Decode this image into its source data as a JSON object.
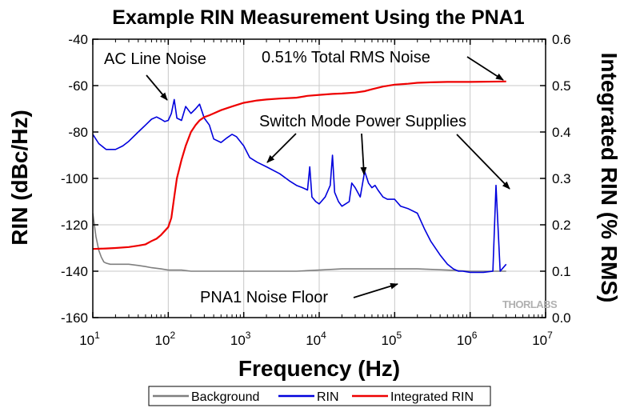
{
  "colors": {
    "background": "#7f7f7f",
    "rin": "#0000dd",
    "integrated": "#ee0000",
    "grid": "#c8c8c8",
    "axis": "#000000",
    "watermark": "#b0b0b0"
  },
  "chart_data": {
    "type": "line",
    "title": "Example RIN Measurement Using the PNA1",
    "xlabel": "Frequency (Hz)",
    "ylabel_left": "RIN (dBc/Hz)",
    "ylabel_right": "Integrated RIN (% RMS)",
    "x_scale": "log",
    "xlim": [
      10,
      10000000
    ],
    "ylim_left": [
      -160,
      -40
    ],
    "ylim_right": [
      0.0,
      0.6
    ],
    "grid": true,
    "legend_position": "bottom",
    "x_tick_labels": [
      {
        "base": "10",
        "exp": "1"
      },
      {
        "base": "10",
        "exp": "2"
      },
      {
        "base": "10",
        "exp": "3"
      },
      {
        "base": "10",
        "exp": "4"
      },
      {
        "base": "10",
        "exp": "5"
      },
      {
        "base": "10",
        "exp": "6"
      },
      {
        "base": "10",
        "exp": "7"
      }
    ],
    "y_left_ticks": [
      "-40",
      "-60",
      "-80",
      "-100",
      "-120",
      "-140",
      "-160"
    ],
    "y_right_ticks": [
      "0.6",
      "0.5",
      "0.4",
      "0.3",
      "0.2",
      "0.1",
      "0.0"
    ],
    "series": [
      {
        "name": "Background",
        "axis": "left",
        "x": [
          10,
          11,
          12,
          13,
          14,
          15,
          17,
          20,
          25,
          30,
          40,
          50,
          60,
          80,
          100,
          150,
          200,
          300,
          500,
          1000,
          2000,
          5000,
          10000,
          20000,
          50000,
          100000,
          200000,
          500000,
          1000000,
          2000000,
          3000000
        ],
        "y": [
          -115,
          -125,
          -131,
          -134,
          -136,
          -136.5,
          -137,
          -137,
          -137,
          -137,
          -137.5,
          -138,
          -138.5,
          -139,
          -139.5,
          -139.5,
          -140,
          -140,
          -140,
          -140,
          -140,
          -140,
          -139.5,
          -139,
          -139,
          -139,
          -139,
          -139.5,
          -140,
          -140,
          -140
        ]
      },
      {
        "name": "RIN",
        "axis": "left",
        "x": [
          10,
          12,
          15,
          20,
          25,
          30,
          40,
          50,
          60,
          70,
          80,
          90,
          100,
          110,
          120,
          130,
          150,
          170,
          200,
          230,
          260,
          300,
          350,
          400,
          500,
          600,
          700,
          800,
          1000,
          1200,
          1500,
          2000,
          3000,
          4000,
          5000,
          6000,
          7000,
          7500,
          8000,
          9000,
          10000,
          12000,
          14000,
          15000,
          16000,
          18000,
          20000,
          25000,
          27000,
          30000,
          35000,
          40000,
          42000,
          45000,
          50000,
          55000,
          60000,
          70000,
          80000,
          100000,
          120000,
          150000,
          200000,
          250000,
          300000,
          400000,
          500000,
          600000,
          700000,
          800000,
          1000000,
          1500000,
          2000000,
          2200000,
          2500000,
          3000000
        ],
        "y": [
          -81,
          -85,
          -87.5,
          -87.5,
          -86,
          -84,
          -80,
          -77,
          -74.5,
          -73.5,
          -74.5,
          -75.5,
          -75,
          -72,
          -66,
          -74,
          -75,
          -69,
          -72,
          -70,
          -68,
          -74,
          -77,
          -83,
          -84.5,
          -82.5,
          -81,
          -82,
          -86,
          -91,
          -93,
          -95,
          -98,
          -101,
          -103,
          -104,
          -105,
          -95,
          -108,
          -110,
          -111,
          -108,
          -103,
          -90,
          -106,
          -110,
          -112,
          -110,
          -102,
          -104,
          -108,
          -97,
          -99,
          -102,
          -104,
          -103,
          -105,
          -108,
          -109,
          -109,
          -112,
          -113,
          -115,
          -122,
          -127,
          -133,
          -137,
          -139,
          -140,
          -140,
          -140.5,
          -140.5,
          -140,
          -103,
          -140,
          -137
        ]
      },
      {
        "name": "Integrated RIN",
        "axis": "right",
        "x": [
          10,
          15,
          20,
          30,
          40,
          50,
          60,
          70,
          80,
          100,
          110,
          120,
          130,
          150,
          170,
          200,
          230,
          260,
          300,
          350,
          400,
          500,
          700,
          1000,
          1500,
          2000,
          3000,
          5000,
          7000,
          10000,
          15000,
          20000,
          30000,
          40000,
          50000,
          70000,
          100000,
          150000,
          200000,
          300000,
          500000,
          1000000,
          3000000
        ],
        "y": [
          0.148,
          0.149,
          0.15,
          0.152,
          0.155,
          0.158,
          0.165,
          0.17,
          0.178,
          0.195,
          0.215,
          0.26,
          0.3,
          0.34,
          0.37,
          0.4,
          0.415,
          0.425,
          0.432,
          0.436,
          0.44,
          0.447,
          0.455,
          0.463,
          0.468,
          0.47,
          0.472,
          0.474,
          0.478,
          0.48,
          0.482,
          0.483,
          0.485,
          0.488,
          0.492,
          0.498,
          0.502,
          0.504,
          0.506,
          0.507,
          0.508,
          0.508,
          0.509
        ]
      }
    ],
    "annotations": [
      {
        "id": "ac-line-noise",
        "text": "AC Line Noise"
      },
      {
        "id": "total-rms-noise",
        "text": "0.51% Total RMS Noise"
      },
      {
        "id": "switch-mode",
        "text": "Switch Mode Power Supplies"
      },
      {
        "id": "noise-floor",
        "text": "PNA1 Noise Floor"
      }
    ],
    "watermark": "THORLABS"
  }
}
